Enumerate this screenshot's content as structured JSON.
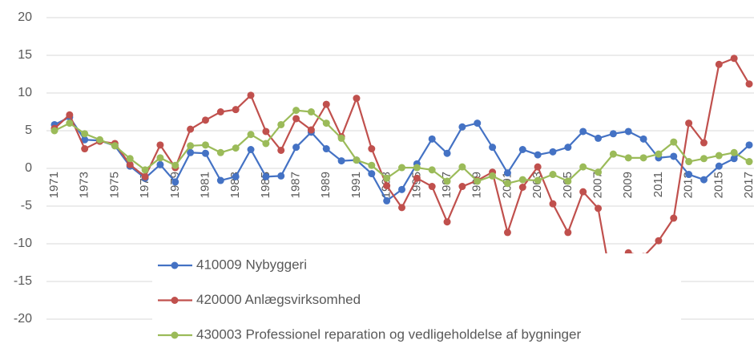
{
  "chart_data": {
    "type": "line",
    "categories": [
      "1971",
      null,
      "1973",
      null,
      "1975",
      null,
      "1977",
      null,
      "1979",
      null,
      "1981",
      null,
      "1983",
      null,
      "1985",
      null,
      "1987",
      null,
      "1989",
      null,
      "1991",
      null,
      "1993",
      null,
      "1995",
      null,
      "1997",
      null,
      "1999",
      null,
      "2001",
      null,
      "2003",
      null,
      "2005",
      null,
      "2007",
      null,
      "2009",
      null,
      "2011",
      null,
      "2013",
      null,
      "2015",
      null,
      "2017"
    ],
    "series": [
      {
        "name": "410009 Nybyggeri",
        "color": "#4472c4",
        "values": [
          5.8,
          6.8,
          3.8,
          3.7,
          3.0,
          0.3,
          -1.3,
          0.5,
          -1.8,
          2.1,
          2.0,
          -1.6,
          -1.1,
          2.5,
          -1.1,
          -1.0,
          2.8,
          4.8,
          2.6,
          1.0,
          1.1,
          -0.7,
          -4.3,
          -2.8,
          0.6,
          3.9,
          2.0,
          5.5,
          6.0,
          2.8,
          -0.6,
          2.5,
          1.8,
          2.2,
          2.8,
          4.9,
          4.0,
          4.6,
          4.9,
          3.9,
          1.4,
          1.6,
          -0.8,
          -1.5,
          0.3,
          1.3,
          3.1
        ]
      },
      {
        "name": "420000 Anlægsvirksomhed",
        "color": "#c0504d",
        "values": [
          5.3,
          7.1,
          2.6,
          3.6,
          3.3,
          0.5,
          -1.1,
          3.1,
          0.1,
          5.2,
          6.4,
          7.5,
          7.8,
          9.7,
          4.9,
          2.4,
          6.6,
          5.1,
          8.5,
          4.2,
          9.3,
          2.6,
          -2.3,
          -5.2,
          -1.3,
          -2.4,
          -7.1,
          -2.4,
          -1.6,
          -0.5,
          -8.5,
          -2.5,
          0.2,
          -4.7,
          -8.5,
          -3.1,
          -5.3,
          -16.5,
          -11.2,
          -11.7,
          -9.6,
          -6.6,
          6.0,
          3.4,
          13.8,
          14.6,
          11.2
        ]
      },
      {
        "name": "430003 Professionel reparation og vedligeholdelse af bygninger",
        "color": "#9bbb59",
        "values": [
          5.0,
          6.0,
          4.6,
          3.8,
          3.0,
          1.3,
          -0.2,
          1.4,
          0.4,
          3.0,
          3.1,
          2.1,
          2.7,
          4.5,
          3.3,
          5.8,
          7.7,
          7.5,
          6.0,
          4.0,
          1.1,
          0.4,
          -1.3,
          0.1,
          0.1,
          -0.2,
          -1.7,
          0.2,
          -1.7,
          -1.0,
          -2.0,
          -1.5,
          -1.6,
          -0.8,
          -1.7,
          0.2,
          -0.5,
          1.9,
          1.4,
          1.4,
          1.9,
          3.5,
          0.9,
          1.3,
          1.7,
          2.1,
          0.9
        ]
      }
    ],
    "ylim": [
      -20,
      20
    ],
    "yticks": [
      -20,
      -15,
      -10,
      -5,
      0,
      5,
      10,
      15,
      20
    ],
    "grid": true
  }
}
